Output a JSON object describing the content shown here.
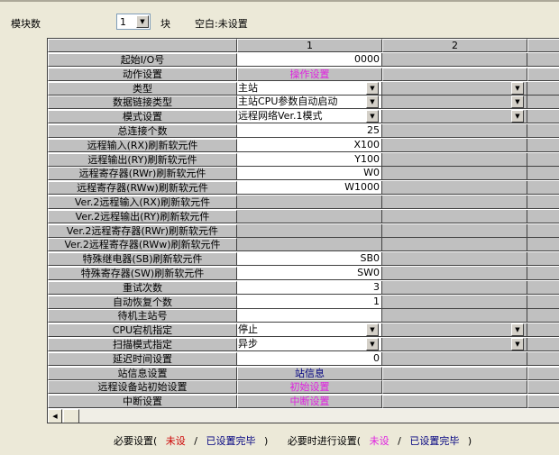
{
  "header": {
    "module_count_label": "模块数",
    "module_count_value": "1",
    "unit": "块",
    "blank_note": "空白:未设置"
  },
  "columns": [
    "",
    "1",
    "2",
    ""
  ],
  "colors": {
    "magenta": "#e020e0",
    "navy": "#000080",
    "red": "#cc0000"
  },
  "rows": [
    {
      "label": "起始I/O号",
      "type": "text",
      "value": "0000"
    },
    {
      "label": "动作设置",
      "type": "button",
      "value": "操作设置",
      "color": "#e020e0"
    },
    {
      "label": "类型",
      "type": "select",
      "value": "主站"
    },
    {
      "label": "数据链接类型",
      "type": "select",
      "value": "主站CPU参数自动启动"
    },
    {
      "label": "模式设置",
      "type": "select",
      "value": "远程网络Ver.1模式"
    },
    {
      "label": "总连接个数",
      "type": "text",
      "value": "25"
    },
    {
      "label": "远程输入(RX)刷新软元件",
      "type": "text",
      "value": "X100"
    },
    {
      "label": "远程输出(RY)刷新软元件",
      "type": "text",
      "value": "Y100"
    },
    {
      "label": "远程寄存器(RWr)刷新软元件",
      "type": "text",
      "value": "W0"
    },
    {
      "label": "远程寄存器(RWw)刷新软元件",
      "type": "text",
      "value": "W1000"
    },
    {
      "label": "Ver.2远程输入(RX)刷新软元件",
      "type": "disabled",
      "value": ""
    },
    {
      "label": "Ver.2远程输出(RY)刷新软元件",
      "type": "disabled",
      "value": ""
    },
    {
      "label": "Ver.2远程寄存器(RWr)刷新软元件",
      "type": "disabled",
      "value": ""
    },
    {
      "label": "Ver.2远程寄存器(RWw)刷新软元件",
      "type": "disabled",
      "value": ""
    },
    {
      "label": "特殊继电器(SB)刷新软元件",
      "type": "text",
      "value": "SB0"
    },
    {
      "label": "特殊寄存器(SW)刷新软元件",
      "type": "text",
      "value": "SW0"
    },
    {
      "label": "重试次数",
      "type": "text",
      "value": "3"
    },
    {
      "label": "自动恢复个数",
      "type": "text",
      "value": "1"
    },
    {
      "label": "待机主站号",
      "type": "text",
      "value": ""
    },
    {
      "label": "CPU宕机指定",
      "type": "select",
      "value": "停止"
    },
    {
      "label": "扫描模式指定",
      "type": "select",
      "value": "异步"
    },
    {
      "label": "延迟时间设置",
      "type": "text",
      "value": "0"
    },
    {
      "label": "站信息设置",
      "type": "button",
      "value": "站信息",
      "color": "#000080"
    },
    {
      "label": "远程设备站初始设置",
      "type": "button",
      "value": "初始设置",
      "color": "#e020e0"
    },
    {
      "label": "中断设置",
      "type": "button",
      "value": "中断设置",
      "color": "#e020e0"
    }
  ],
  "legend": {
    "required": "必要设置(",
    "unset1": "未设",
    "slash1": "/",
    "done1": "已设置完毕",
    "close1": ")",
    "optional": "必要时进行设置(",
    "unset2": "未设",
    "slash2": "/",
    "done2": "已设置完毕",
    "close2": ")"
  }
}
